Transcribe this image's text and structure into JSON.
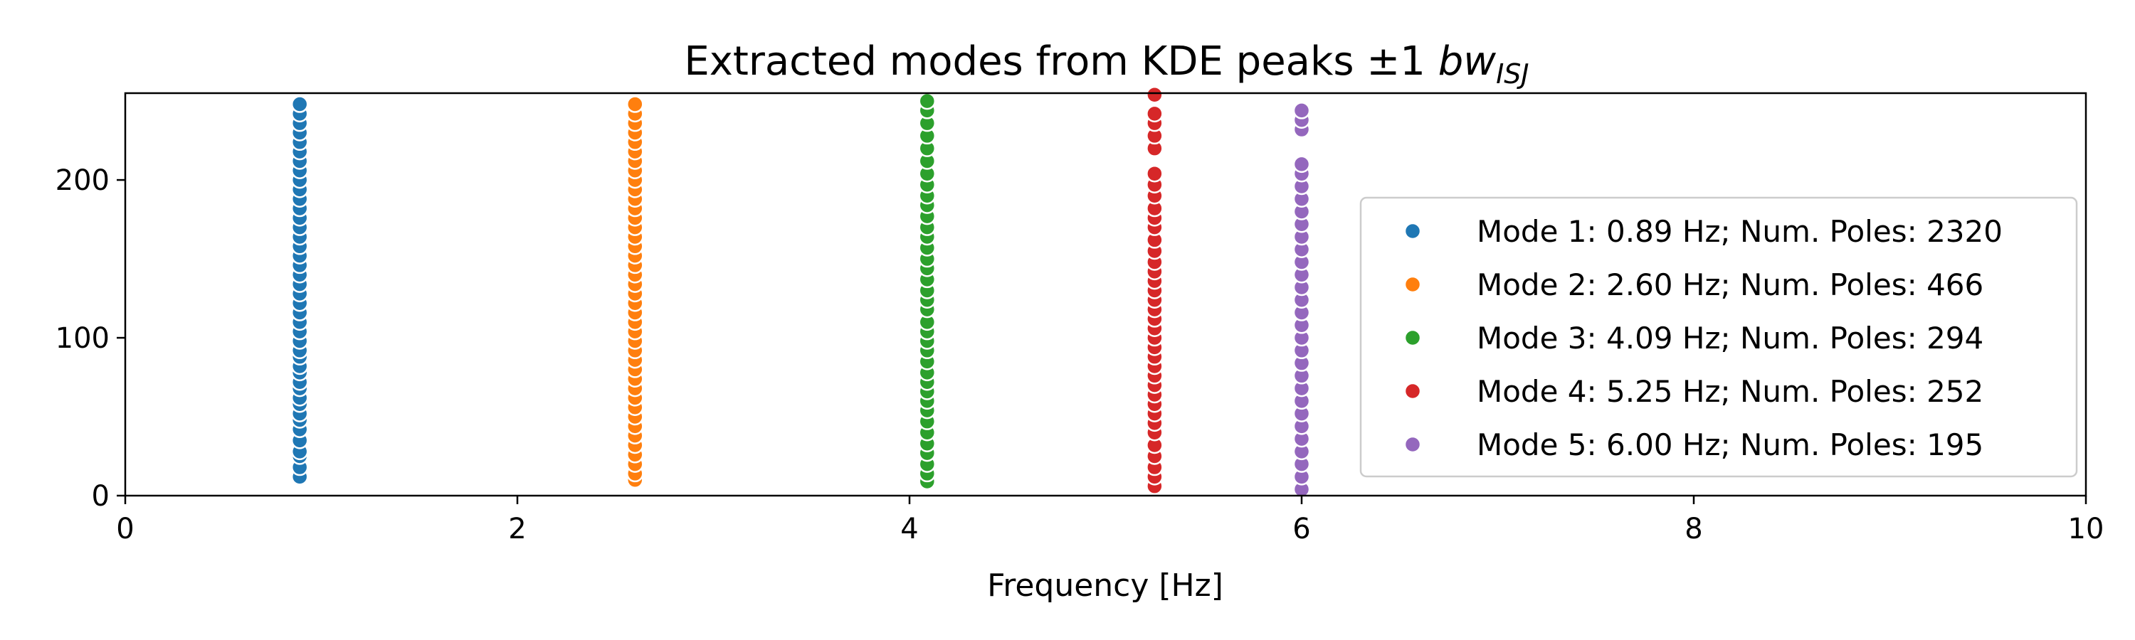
{
  "chart_data": {
    "type": "scatter",
    "title": "Extracted modes from KDE peaks ±1 ",
    "title_math": "bw",
    "title_math_sub": "ISJ",
    "xlabel": "Frequency [Hz]",
    "ylabel": "",
    "xlim": [
      0,
      10
    ],
    "ylim": [
      0,
      255
    ],
    "xticks": [
      0,
      2,
      4,
      6,
      8,
      10
    ],
    "xtick_labels": [
      "0",
      "2",
      "4",
      "6",
      "8",
      "10"
    ],
    "yticks": [
      0,
      100,
      200
    ],
    "ytick_labels": [
      "0",
      "100",
      "200"
    ],
    "grid": false,
    "legend_position": "lower-right",
    "series": [
      {
        "name": "Mode 1: 0.89 Hz; Num. Poles: 2320",
        "color": "#1f77b4",
        "x": 0.89,
        "y": [
          12,
          18,
          25,
          28,
          35,
          42,
          48,
          52,
          58,
          62,
          68,
          72,
          78,
          82,
          88,
          92,
          98,
          104,
          110,
          116,
          122,
          128,
          134,
          140,
          146,
          152,
          158,
          164,
          170,
          176,
          182,
          188,
          194,
          200,
          206,
          212,
          218,
          224,
          230,
          236,
          242,
          248
        ]
      },
      {
        "name": "Mode 2: 2.60 Hz; Num. Poles: 466",
        "color": "#ff7f0e",
        "x": 2.6,
        "y": [
          10,
          14,
          20,
          26,
          32,
          38,
          44,
          50,
          56,
          62,
          68,
          74,
          80,
          86,
          92,
          98,
          104,
          110,
          116,
          122,
          128,
          134,
          140,
          146,
          152,
          158,
          164,
          170,
          176,
          182,
          188,
          194,
          200,
          206,
          212,
          218,
          224,
          230,
          236,
          242,
          248
        ]
      },
      {
        "name": "Mode 3: 4.09 Hz; Num. Poles: 294",
        "color": "#2ca02c",
        "x": 4.09,
        "y": [
          9,
          14,
          20,
          27,
          33,
          40,
          47,
          54,
          60,
          66,
          72,
          78,
          85,
          92,
          98,
          104,
          110,
          118,
          124,
          130,
          137,
          144,
          150,
          157,
          164,
          170,
          177,
          184,
          190,
          197,
          204,
          212,
          220,
          228,
          236,
          244,
          250
        ]
      },
      {
        "name": "Mode 4: 5.25 Hz; Num. Poles: 252",
        "color": "#d62728",
        "x": 5.25,
        "y": [
          6,
          12,
          18,
          25,
          32,
          40,
          46,
          52,
          58,
          64,
          70,
          76,
          82,
          88,
          94,
          100,
          106,
          112,
          118,
          124,
          130,
          136,
          142,
          148,
          155,
          162,
          170,
          176,
          182,
          190,
          197,
          204,
          220,
          228,
          236,
          242,
          254
        ]
      },
      {
        "name": "Mode 5: 6.00 Hz; Num. Poles: 195",
        "color": "#9467bd",
        "x": 6.0,
        "y": [
          4,
          12,
          20,
          28,
          36,
          44,
          52,
          60,
          68,
          76,
          84,
          92,
          100,
          108,
          116,
          124,
          132,
          140,
          148,
          156,
          164,
          172,
          180,
          188,
          196,
          204,
          210,
          232,
          238,
          244
        ]
      }
    ]
  }
}
